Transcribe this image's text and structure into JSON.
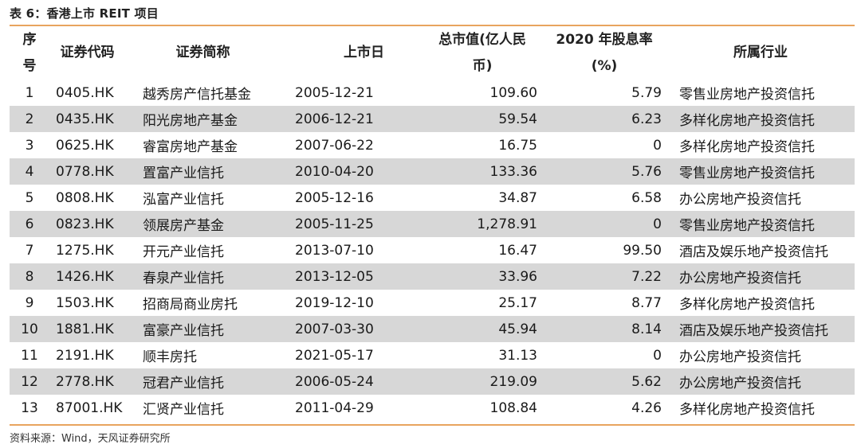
{
  "caption": "表 6：香港上市 REIT 项目",
  "headers": {
    "idx": [
      "序",
      "号"
    ],
    "code": "证券代码",
    "name": "证券简称",
    "date": "上市日",
    "cap": [
      "总市值(亿人民",
      "币)"
    ],
    "div": [
      "2020 年股息率",
      "(%)"
    ],
    "ind": "所属行业"
  },
  "rows": [
    {
      "idx": "1",
      "code": "0405.HK",
      "name": "越秀房产信托基金",
      "date": "2005-12-21",
      "cap": "109.60",
      "div": "5.79",
      "ind": "零售业房地产投资信托"
    },
    {
      "idx": "2",
      "code": "0435.HK",
      "name": "阳光房地产基金",
      "date": "2006-12-21",
      "cap": "59.54",
      "div": "6.23",
      "ind": "多样化房地产投资信托"
    },
    {
      "idx": "3",
      "code": "0625.HK",
      "name": "睿富房地产基金",
      "date": "2007-06-22",
      "cap": "16.75",
      "div": "0",
      "ind": "多样化房地产投资信托"
    },
    {
      "idx": "4",
      "code": "0778.HK",
      "name": "置富产业信托",
      "date": "2010-04-20",
      "cap": "133.36",
      "div": "5.76",
      "ind": "零售业房地产投资信托"
    },
    {
      "idx": "5",
      "code": "0808.HK",
      "name": "泓富产业信托",
      "date": "2005-12-16",
      "cap": "34.87",
      "div": "6.58",
      "ind": "办公房地产投资信托"
    },
    {
      "idx": "6",
      "code": "0823.HK",
      "name": "领展房产基金",
      "date": "2005-11-25",
      "cap": "1,278.91",
      "div": "0",
      "ind": "零售业房地产投资信托"
    },
    {
      "idx": "7",
      "code": "1275.HK",
      "name": "开元产业信托",
      "date": "2013-07-10",
      "cap": "16.47",
      "div": "99.50",
      "ind": "酒店及娱乐地产投资信托"
    },
    {
      "idx": "8",
      "code": "1426.HK",
      "name": "春泉产业信托",
      "date": "2013-12-05",
      "cap": "33.96",
      "div": "7.22",
      "ind": "办公房地产投资信托"
    },
    {
      "idx": "9",
      "code": "1503.HK",
      "name": "招商局商业房托",
      "date": "2019-12-10",
      "cap": "25.17",
      "div": "8.77",
      "ind": "多样化房地产投资信托"
    },
    {
      "idx": "10",
      "code": "1881.HK",
      "name": "富豪产业信托",
      "date": "2007-03-30",
      "cap": "45.94",
      "div": "8.14",
      "ind": "酒店及娱乐地产投资信托"
    },
    {
      "idx": "11",
      "code": "2191.HK",
      "name": "顺丰房托",
      "date": "2021-05-17",
      "cap": "31.13",
      "div": "0",
      "ind": "办公房地产投资信托"
    },
    {
      "idx": "12",
      "code": "2778.HK",
      "name": "冠君产业信托",
      "date": "2006-05-24",
      "cap": "219.09",
      "div": "5.62",
      "ind": "办公房地产投资信托"
    },
    {
      "idx": "13",
      "code": "87001.HK",
      "name": "汇贤产业信托",
      "date": "2011-04-29",
      "cap": "108.84",
      "div": "4.26",
      "ind": "多样化房地产投资信托"
    }
  ],
  "source": "资料来源：Wind，天风证券研究所",
  "colors": {
    "rule": "#e8a45f",
    "stripe": "#d7d7d7"
  }
}
